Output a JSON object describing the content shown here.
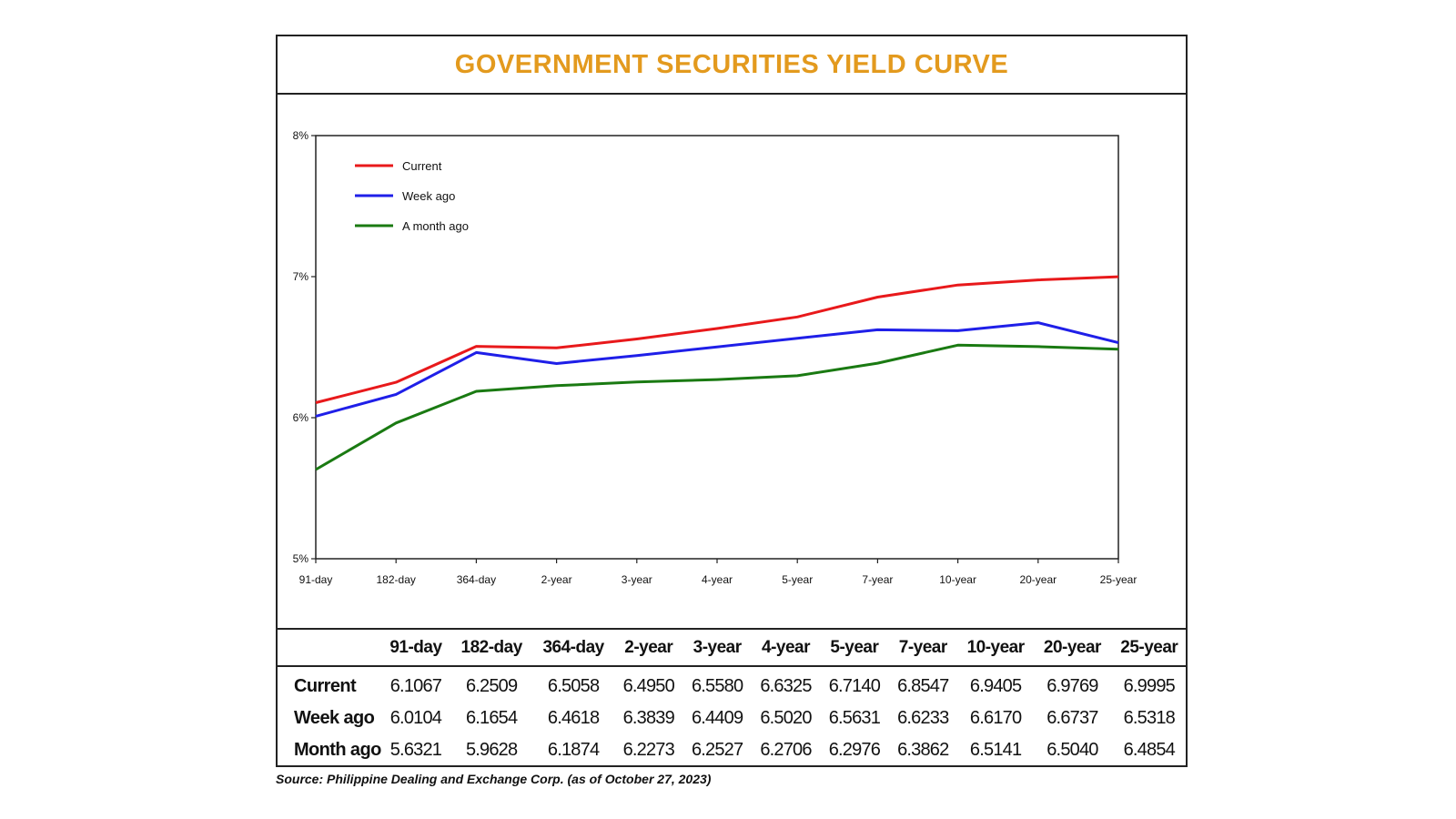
{
  "chart_data": {
    "type": "line",
    "title": "GOVERNMENT SECURITIES YIELD CURVE",
    "categories": [
      "91-day",
      "182-day",
      "364-day",
      "2-year",
      "3-year",
      "4-year",
      "5-year",
      "7-year",
      "10-year",
      "20-year",
      "25-year"
    ],
    "y_ticks": [
      "5%",
      "6%",
      "7%",
      "8%"
    ],
    "ylim": [
      5,
      8
    ],
    "series": [
      {
        "name": "Current",
        "color": "#e8191b",
        "values": [
          6.1067,
          6.2509,
          6.5058,
          6.495,
          6.558,
          6.6325,
          6.714,
          6.8547,
          6.9405,
          6.9769,
          6.9995
        ]
      },
      {
        "name": "Week ago",
        "color": "#1f1fe8",
        "values": [
          6.0104,
          6.1654,
          6.4618,
          6.3839,
          6.4409,
          6.502,
          6.5631,
          6.6233,
          6.617,
          6.6737,
          6.5318
        ]
      },
      {
        "name": "A month ago",
        "color": "#1a7a12",
        "values": [
          5.6321,
          5.9628,
          6.1874,
          6.2273,
          6.2527,
          6.2706,
          6.2976,
          6.3862,
          6.5141,
          6.504,
          6.4854
        ]
      }
    ],
    "legend_position": "top-left",
    "grid": false
  },
  "table": {
    "columns": [
      "91-day",
      "182-day",
      "364-day",
      "2-year",
      "3-year",
      "4-year",
      "5-year",
      "7-year",
      "10-year",
      "20-year",
      "25-year"
    ],
    "rows": [
      {
        "label": "Current",
        "cells": [
          "6.1067",
          "6.2509",
          "6.5058",
          "6.4950",
          "6.5580",
          "6.6325",
          "6.7140",
          "6.8547",
          "6.9405",
          "6.9769",
          "6.9995"
        ]
      },
      {
        "label": "Week ago",
        "cells": [
          "6.0104",
          "6.1654",
          "6.4618",
          "6.3839",
          "6.4409",
          "6.5020",
          "6.5631",
          "6.6233",
          "6.6170",
          "6.6737",
          "6.5318"
        ]
      },
      {
        "label": "Month ago",
        "cells": [
          "5.6321",
          "5.9628",
          "6.1874",
          "6.2273",
          "6.2527",
          "6.2706",
          "6.2976",
          "6.3862",
          "6.5141",
          "6.5040",
          "6.4854"
        ]
      }
    ]
  },
  "source": "Source: Philippine Dealing and Exchange Corp. (as of October 27, 2023)"
}
